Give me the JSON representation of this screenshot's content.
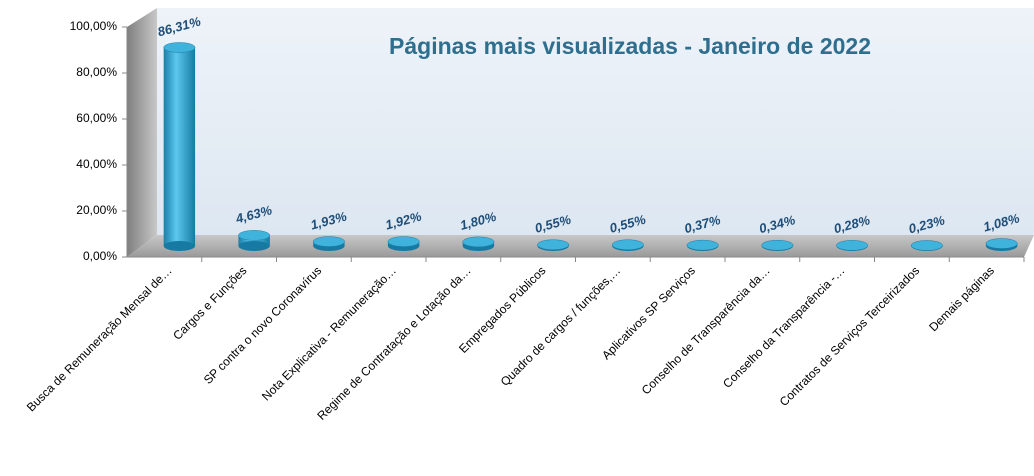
{
  "chart_data": {
    "type": "bar3d",
    "title": "Páginas mais visualizadas - Janeiro de 2022",
    "categories": [
      "Busca de Remuneração Mensal de…",
      "Cargos e Funções",
      "SP contra o novo Coronavírus",
      "Nota Explicativa - Remuneração…",
      "Regime de Contratação e Lotação da…",
      "Empregados Públicos",
      "Quadro de cargos / funções,…",
      "Aplicativos SP Serviços",
      "Conselho de Transparência da…",
      "Conselho da Transparência -…",
      "Contratos de Serviços Terceirizados",
      "Demais páginas"
    ],
    "values": [
      86.31,
      4.63,
      1.93,
      1.92,
      1.8,
      0.55,
      0.55,
      0.37,
      0.34,
      0.28,
      0.23,
      1.08
    ],
    "value_labels": [
      "86,31%",
      "4,63%",
      "1,93%",
      "1,92%",
      "1,80%",
      "0,55%",
      "0,55%",
      "0,37%",
      "0,34%",
      "0,28%",
      "0,23%",
      "1,08%"
    ],
    "color": "#2aa6d6",
    "ylim": [
      0,
      100
    ],
    "yticks": [
      {
        "value": 0,
        "label": "0,00%"
      },
      {
        "value": 20,
        "label": "20,00%"
      },
      {
        "value": 40,
        "label": "40,00%"
      },
      {
        "value": 60,
        "label": "60,00%"
      },
      {
        "value": 80,
        "label": "80,00%"
      },
      {
        "value": 100,
        "label": "100,00%"
      }
    ]
  }
}
